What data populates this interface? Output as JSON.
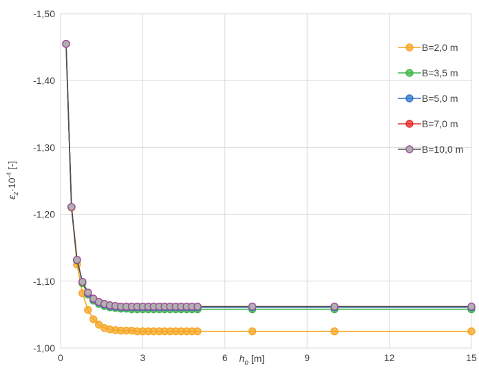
{
  "chart_data": {
    "type": "line",
    "xlabel": "h",
    "xlabel_sub": "p",
    "xlabel_unit": " [m]",
    "ylabel": "ε",
    "ylabel_sub": "z",
    "ylabel_mid": "·10",
    "ylabel_sup": "-4",
    "ylabel_unit": " [-]",
    "xlim": [
      0,
      15
    ],
    "ylim": [
      -1.0,
      -1.5
    ],
    "y_inverted": true,
    "xticks": [
      0,
      3,
      6,
      9,
      12,
      15
    ],
    "xtick_labels": [
      "0",
      "3",
      "6",
      "9",
      "12",
      "15"
    ],
    "yticks": [
      -1.0,
      -1.1,
      -1.2,
      -1.3,
      -1.4,
      -1.5
    ],
    "ytick_labels": [
      "-1,00",
      "-1,10",
      "-1,20",
      "-1,30",
      "-1,40",
      "-1,50"
    ],
    "grid": true,
    "legend_position": "right",
    "x": [
      0.2,
      0.4,
      0.6,
      0.8,
      1.0,
      1.2,
      1.4,
      1.6,
      1.8,
      2.0,
      2.2,
      2.4,
      2.6,
      2.8,
      3.0,
      3.2,
      3.4,
      3.6,
      3.8,
      4.0,
      4.2,
      4.4,
      4.6,
      4.8,
      5.0,
      7.0,
      10.0,
      15.0
    ],
    "series": [
      {
        "name": "B=2,0 m",
        "color": "#f5a623",
        "values": [
          -1.455,
          -1.21,
          -1.125,
          -1.082,
          -1.057,
          -1.043,
          -1.035,
          -1.03,
          -1.028,
          -1.027,
          -1.026,
          -1.026,
          -1.026,
          -1.025,
          -1.025,
          -1.025,
          -1.025,
          -1.025,
          -1.025,
          -1.025,
          -1.025,
          -1.025,
          -1.025,
          -1.025,
          -1.025,
          -1.025,
          -1.025,
          -1.025
        ]
      },
      {
        "name": "B=3,5 m",
        "color": "#3db54a",
        "values": [
          -1.455,
          -1.211,
          -1.131,
          -1.097,
          -1.08,
          -1.071,
          -1.066,
          -1.063,
          -1.061,
          -1.06,
          -1.059,
          -1.059,
          -1.058,
          -1.058,
          -1.058,
          -1.058,
          -1.058,
          -1.058,
          -1.058,
          -1.058,
          -1.058,
          -1.058,
          -1.058,
          -1.058,
          -1.058,
          -1.058,
          -1.058,
          -1.058
        ]
      },
      {
        "name": "B=5,0 m",
        "color": "#2e75c9",
        "values": [
          -1.455,
          -1.211,
          -1.132,
          -1.099,
          -1.082,
          -1.073,
          -1.068,
          -1.065,
          -1.063,
          -1.062,
          -1.061,
          -1.061,
          -1.061,
          -1.061,
          -1.061,
          -1.061,
          -1.061,
          -1.061,
          -1.061,
          -1.061,
          -1.061,
          -1.061,
          -1.061,
          -1.061,
          -1.061,
          -1.061,
          -1.061,
          -1.061
        ]
      },
      {
        "name": "B=7,0 m",
        "color": "#e32b2b",
        "values": [
          -1.455,
          -1.211,
          -1.132,
          -1.099,
          -1.083,
          -1.074,
          -1.069,
          -1.066,
          -1.064,
          -1.063,
          -1.062,
          -1.062,
          -1.062,
          -1.062,
          -1.062,
          -1.062,
          -1.062,
          -1.062,
          -1.062,
          -1.062,
          -1.062,
          -1.062,
          -1.062,
          -1.062,
          -1.062,
          -1.062,
          -1.062,
          -1.062
        ]
      },
      {
        "name": "B=10,0 m",
        "color": "#505050",
        "marker_fill": "#b0b0b0",
        "marker_stroke": "#9b4f9b",
        "values": [
          -1.455,
          -1.211,
          -1.132,
          -1.099,
          -1.083,
          -1.074,
          -1.069,
          -1.066,
          -1.064,
          -1.063,
          -1.062,
          -1.062,
          -1.062,
          -1.062,
          -1.062,
          -1.062,
          -1.062,
          -1.062,
          -1.062,
          -1.062,
          -1.062,
          -1.062,
          -1.062,
          -1.062,
          -1.062,
          -1.062,
          -1.062,
          -1.062
        ]
      }
    ]
  }
}
